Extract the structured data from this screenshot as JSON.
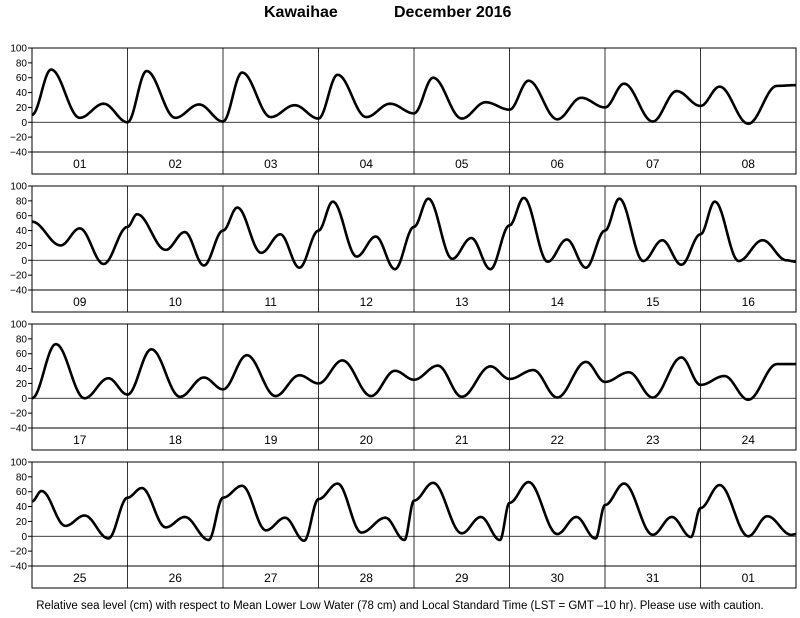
{
  "title": {
    "location": "Kawaihae",
    "period": "December 2016"
  },
  "footnote": "Relative sea level (cm) with respect to Mean Lower Low Water (78 cm) and Local Standard Time (LST = GMT –10 hr). Please use with caution.",
  "chart_data": {
    "type": "line",
    "ylim": [
      -40,
      100
    ],
    "yticks": [
      -40,
      -20,
      0,
      20,
      40,
      60,
      80,
      100
    ],
    "ytick_labels": [
      "−40",
      "−20",
      "0",
      "20",
      "40",
      "60",
      "80",
      "100"
    ],
    "grid": "vertical lines at day boundaries, horizontal line at 0",
    "line_color": "#000000",
    "panels": [
      {
        "day_labels": [
          "01",
          "02",
          "03",
          "04",
          "05",
          "06",
          "07",
          "08"
        ],
        "extremes": [
          [
            0,
            10
          ],
          [
            0.2,
            71
          ],
          [
            0.5,
            6
          ],
          [
            0.75,
            25
          ],
          [
            1.0,
            0
          ],
          [
            1.2,
            69
          ],
          [
            1.5,
            6
          ],
          [
            1.75,
            24
          ],
          [
            2.0,
            1
          ],
          [
            2.2,
            67
          ],
          [
            2.5,
            7
          ],
          [
            2.75,
            23
          ],
          [
            3.0,
            5
          ],
          [
            3.2,
            64
          ],
          [
            3.5,
            7
          ],
          [
            3.75,
            25
          ],
          [
            4.0,
            12
          ],
          [
            4.2,
            60
          ],
          [
            4.5,
            5
          ],
          [
            4.75,
            27
          ],
          [
            5.0,
            17
          ],
          [
            5.2,
            56
          ],
          [
            5.5,
            4
          ],
          [
            5.75,
            33
          ],
          [
            6.0,
            20
          ],
          [
            6.2,
            52
          ],
          [
            6.5,
            1
          ],
          [
            6.75,
            42
          ],
          [
            7.0,
            22
          ],
          [
            7.2,
            48
          ],
          [
            7.5,
            -2
          ],
          [
            7.8,
            49
          ],
          [
            8.0,
            50
          ]
        ]
      },
      {
        "day_labels": [
          "09",
          "10",
          "11",
          "12",
          "13",
          "14",
          "15",
          "16"
        ],
        "extremes": [
          [
            0,
            52
          ],
          [
            0.3,
            20
          ],
          [
            0.5,
            43
          ],
          [
            0.75,
            -5
          ],
          [
            1.0,
            45
          ],
          [
            1.1,
            62
          ],
          [
            1.4,
            14
          ],
          [
            1.6,
            38
          ],
          [
            1.8,
            -7
          ],
          [
            2.0,
            40
          ],
          [
            2.15,
            71
          ],
          [
            2.4,
            10
          ],
          [
            2.6,
            35
          ],
          [
            2.8,
            -10
          ],
          [
            3.0,
            40
          ],
          [
            3.15,
            79
          ],
          [
            3.4,
            5
          ],
          [
            3.6,
            32
          ],
          [
            3.8,
            -12
          ],
          [
            4.0,
            45
          ],
          [
            4.15,
            83
          ],
          [
            4.4,
            2
          ],
          [
            4.6,
            30
          ],
          [
            4.8,
            -12
          ],
          [
            5.0,
            47
          ],
          [
            5.15,
            84
          ],
          [
            5.4,
            -2
          ],
          [
            5.6,
            28
          ],
          [
            5.8,
            -10
          ],
          [
            6.0,
            40
          ],
          [
            6.15,
            83
          ],
          [
            6.4,
            -1
          ],
          [
            6.6,
            27
          ],
          [
            6.8,
            -6
          ],
          [
            7.0,
            35
          ],
          [
            7.15,
            79
          ],
          [
            7.4,
            -1
          ],
          [
            7.65,
            27
          ],
          [
            7.9,
            0
          ],
          [
            8.0,
            -2
          ]
        ]
      },
      {
        "day_labels": [
          "17",
          "18",
          "19",
          "20",
          "21",
          "22",
          "23",
          "24"
        ],
        "extremes": [
          [
            0,
            0
          ],
          [
            0.25,
            73
          ],
          [
            0.55,
            0
          ],
          [
            0.8,
            27
          ],
          [
            1.0,
            5
          ],
          [
            1.25,
            66
          ],
          [
            1.55,
            2
          ],
          [
            1.8,
            28
          ],
          [
            2.0,
            12
          ],
          [
            2.25,
            58
          ],
          [
            2.55,
            3
          ],
          [
            2.8,
            31
          ],
          [
            3.0,
            20
          ],
          [
            3.25,
            51
          ],
          [
            3.55,
            3
          ],
          [
            3.8,
            37
          ],
          [
            4.0,
            25
          ],
          [
            4.25,
            44
          ],
          [
            4.5,
            2
          ],
          [
            4.8,
            43
          ],
          [
            5.0,
            26
          ],
          [
            5.25,
            38
          ],
          [
            5.5,
            1
          ],
          [
            5.8,
            49
          ],
          [
            6.0,
            22
          ],
          [
            6.25,
            35
          ],
          [
            6.5,
            1
          ],
          [
            6.8,
            55
          ],
          [
            7.0,
            18
          ],
          [
            7.25,
            30
          ],
          [
            7.5,
            -2
          ],
          [
            7.8,
            46
          ],
          [
            8.0,
            46
          ]
        ]
      },
      {
        "day_labels": [
          "25",
          "26",
          "27",
          "28",
          "29",
          "30",
          "31",
          "01"
        ],
        "extremes": [
          [
            0,
            47
          ],
          [
            0.1,
            61
          ],
          [
            0.35,
            14
          ],
          [
            0.55,
            28
          ],
          [
            0.8,
            -3
          ],
          [
            1.0,
            52
          ],
          [
            1.15,
            65
          ],
          [
            1.4,
            12
          ],
          [
            1.6,
            26
          ],
          [
            1.85,
            -5
          ],
          [
            2.0,
            52
          ],
          [
            2.2,
            68
          ],
          [
            2.45,
            8
          ],
          [
            2.65,
            25
          ],
          [
            2.85,
            -6
          ],
          [
            3.0,
            50
          ],
          [
            3.2,
            71
          ],
          [
            3.45,
            5
          ],
          [
            3.7,
            25
          ],
          [
            3.9,
            -5
          ],
          [
            4.0,
            48
          ],
          [
            4.2,
            72
          ],
          [
            4.5,
            4
          ],
          [
            4.7,
            26
          ],
          [
            4.9,
            -5
          ],
          [
            5.0,
            45
          ],
          [
            5.2,
            73
          ],
          [
            5.5,
            3
          ],
          [
            5.7,
            26
          ],
          [
            5.9,
            -3
          ],
          [
            6.0,
            42
          ],
          [
            6.2,
            71
          ],
          [
            6.5,
            2
          ],
          [
            6.7,
            26
          ],
          [
            6.9,
            -1
          ],
          [
            7.0,
            38
          ],
          [
            7.2,
            69
          ],
          [
            7.5,
            0
          ],
          [
            7.7,
            27
          ],
          [
            7.95,
            2
          ],
          [
            8.0,
            3
          ]
        ]
      }
    ]
  }
}
